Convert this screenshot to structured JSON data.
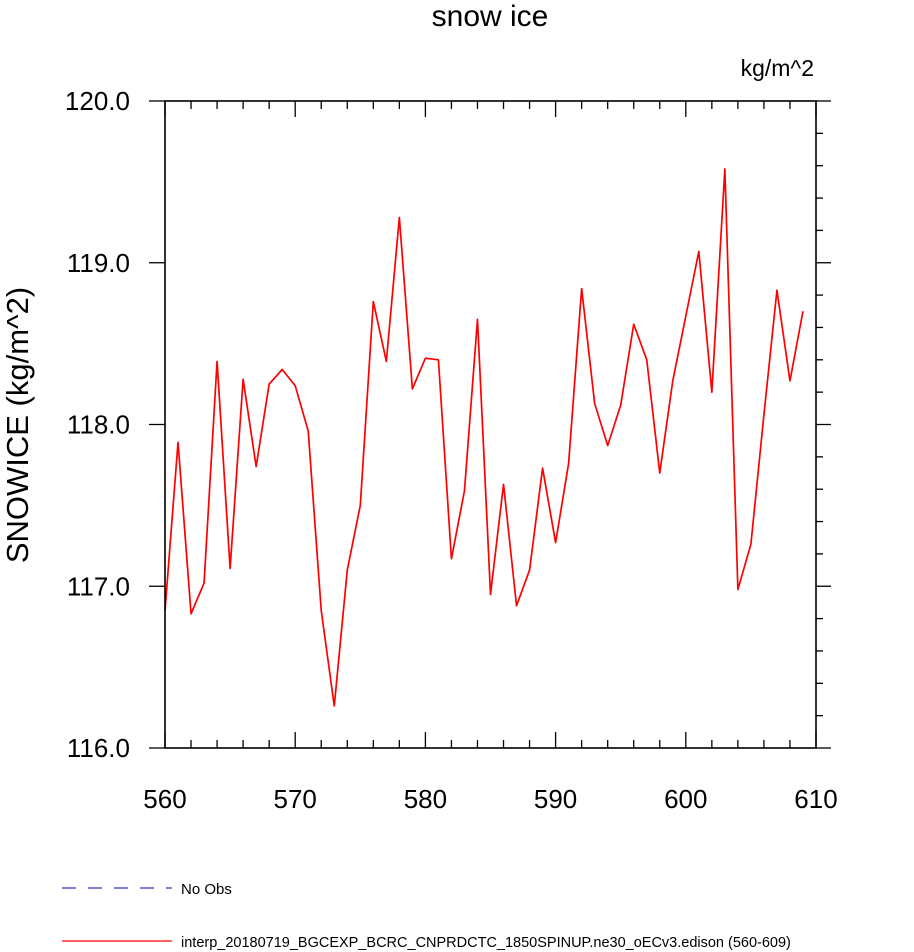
{
  "chart_data": {
    "type": "line",
    "title": "snow ice",
    "units": "kg/m^2",
    "xlabel": "",
    "ylabel": "SNOWICE  (kg/m^2)",
    "xlim": [
      560,
      610
    ],
    "ylim": [
      116.0,
      120.0
    ],
    "x_ticks": [
      "560",
      "570",
      "580",
      "590",
      "600",
      "610"
    ],
    "y_ticks": [
      "116.0",
      "117.0",
      "118.0",
      "119.0",
      "120.0"
    ],
    "grid": false,
    "legend_position": "bottom-left",
    "legend": [
      {
        "label": "No Obs",
        "color": "#3333cc",
        "style": "dashed"
      },
      {
        "label": "interp_20180719_BGCEXP_BCRC_CNPRDCTC_1850SPINUP.ne30_oECv3.edison (560-609)",
        "color": "#ff0000",
        "style": "solid"
      }
    ],
    "series": [
      {
        "color": "#ff0000",
        "x": [
          560,
          561,
          562,
          563,
          564,
          565,
          566,
          567,
          568,
          569,
          570,
          571,
          572,
          573,
          574,
          575,
          576,
          577,
          578,
          579,
          580,
          581,
          582,
          583,
          584,
          585,
          586,
          587,
          588,
          589,
          590,
          591,
          592,
          593,
          594,
          595,
          596,
          597,
          598,
          599,
          600,
          601,
          602,
          603,
          604,
          605,
          606,
          607,
          608,
          609
        ],
        "values": [
          116.85,
          117.89,
          116.83,
          117.02,
          118.39,
          117.11,
          118.28,
          117.74,
          118.25,
          118.34,
          118.24,
          117.96,
          116.85,
          116.26,
          117.1,
          117.5,
          118.76,
          118.39,
          119.28,
          118.22,
          118.41,
          118.4,
          117.17,
          117.59,
          118.65,
          116.95,
          117.63,
          116.88,
          117.1,
          117.73,
          117.27,
          117.76,
          118.84,
          118.13,
          117.87,
          118.12,
          118.62,
          118.4,
          117.7,
          118.27,
          118.67,
          119.07,
          118.2,
          119.58,
          116.98,
          117.26,
          118.06,
          118.83,
          118.27,
          118.7
        ]
      }
    ]
  }
}
